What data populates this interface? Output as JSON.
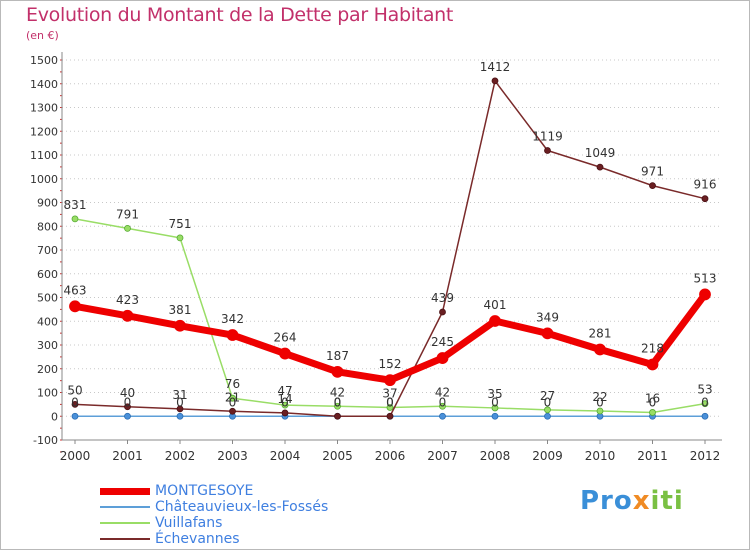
{
  "header": {
    "title": "Evolution du Montant de la Dette par Habitant",
    "subtitle": "(en €)"
  },
  "logo": {
    "part1": "Pro",
    "part2": "x",
    "part3": "iti"
  },
  "chart_data": {
    "type": "line",
    "title": "Evolution du Montant de la Dette par Habitant",
    "subtitle": "(en €)",
    "x": [
      "2000",
      "2001",
      "2002",
      "2003",
      "2004",
      "2005",
      "2006",
      "2007",
      "2008",
      "2009",
      "2010",
      "2011",
      "2012"
    ],
    "ylim": [
      -100,
      1500
    ],
    "yticks": [
      -100,
      0,
      100,
      200,
      300,
      400,
      500,
      600,
      700,
      800,
      900,
      1000,
      1100,
      1200,
      1300,
      1400,
      1500
    ],
    "grid": "horizontal dotted",
    "legend_position": "bottom-left",
    "series": [
      {
        "name": "MONTGESOYE",
        "color": "#ee0000",
        "values": [
          463,
          423,
          381,
          342,
          264,
          187,
          152,
          245,
          401,
          349,
          281,
          218,
          513
        ],
        "labels": [
          "463",
          "423",
          "381",
          "342",
          "264",
          "187",
          "152",
          "245",
          "401",
          "349",
          "281",
          "218",
          "513"
        ]
      },
      {
        "name": "Châteauvieux-les-Fossés",
        "color": "#5d9fd8",
        "values": [
          0,
          0,
          0,
          0,
          0,
          0,
          0,
          0,
          0,
          0,
          0,
          0,
          0
        ],
        "labels": [
          "0",
          "0",
          "0",
          "0",
          "0",
          "0",
          "0",
          "0",
          "0",
          "0",
          "0",
          "0",
          "0"
        ]
      },
      {
        "name": "Vuillafans",
        "color": "#99dd66",
        "values": [
          831,
          791,
          751,
          76,
          47,
          42,
          37,
          42,
          35,
          27,
          22,
          16,
          53
        ],
        "labels": [
          "831",
          "791",
          "751",
          "76",
          "47",
          "42",
          "37",
          "42",
          "35",
          "27",
          "22",
          "16",
          "53"
        ]
      },
      {
        "name": "Échevannes",
        "color": "#7a2a2a",
        "values": [
          50,
          40,
          31,
          21,
          14,
          0,
          0,
          439,
          1412,
          1119,
          1049,
          971,
          916
        ],
        "labels": [
          "50",
          "40",
          "31",
          "21",
          "14",
          "0",
          "0",
          "439",
          "1412",
          "1119",
          "1049",
          "971",
          "916"
        ]
      }
    ]
  }
}
